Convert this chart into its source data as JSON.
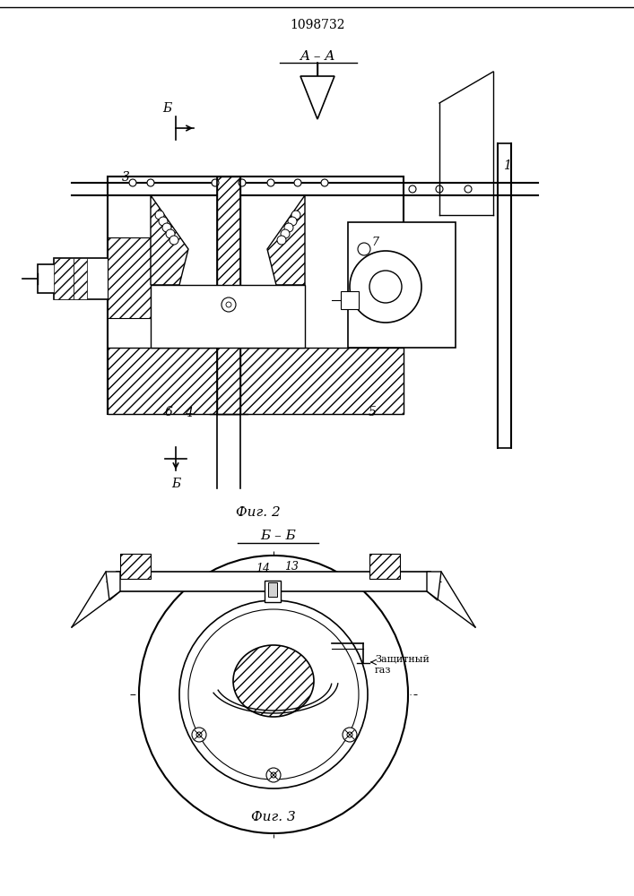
{
  "title": "1098732",
  "fig2_label": "Фиг. 2",
  "fig3_label": "Фиг. 3",
  "section_aa": "A – A",
  "section_bb": "Б – Б",
  "background_color": "#ffffff",
  "line_color": "#000000",
  "label_b_arrow": "Б",
  "label_zashchitny": "Защитный",
  "label_gaz": "газ",
  "parts": {
    "1": "1",
    "3": "3",
    "4": "4",
    "5": "5",
    "6": "6",
    "7": "7",
    "13": "13",
    "14": "14"
  }
}
